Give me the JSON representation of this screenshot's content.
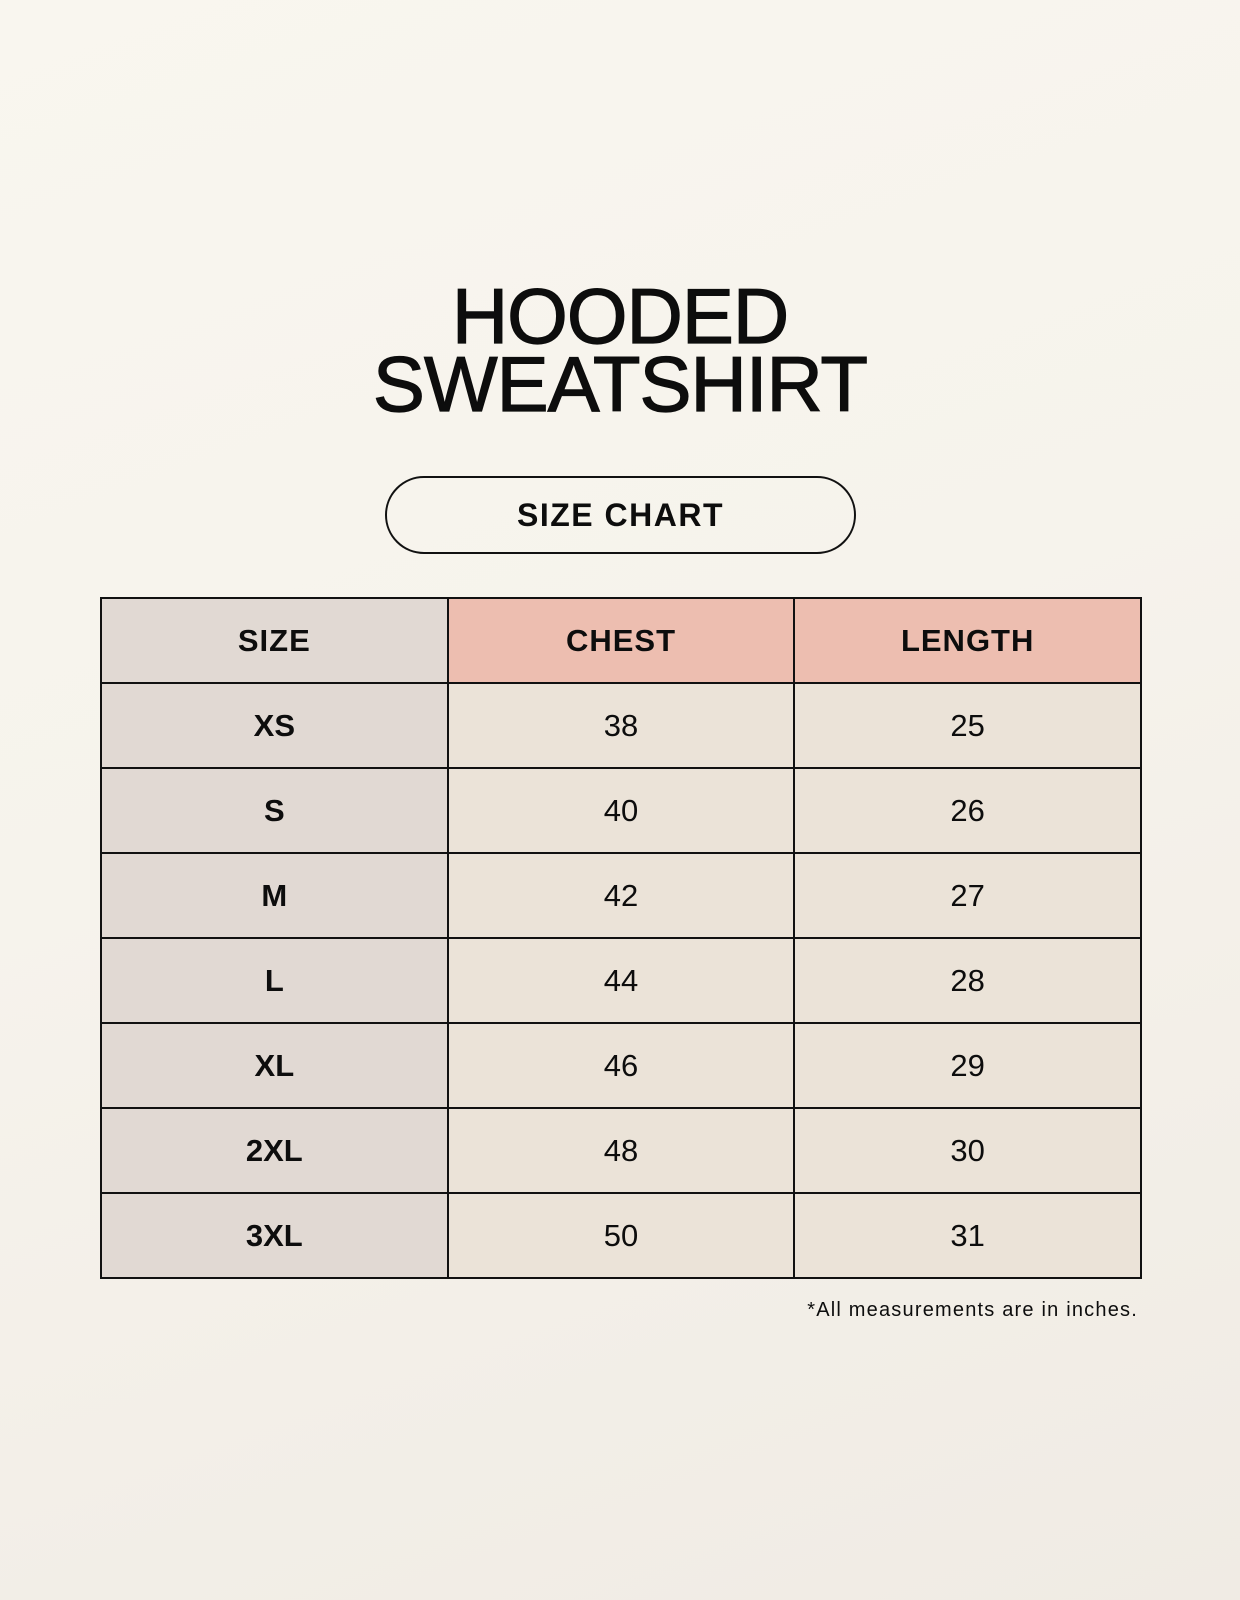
{
  "title": {
    "line1": "HOODED",
    "line2": "SWEATSHIRT"
  },
  "subtitle": "SIZE CHART",
  "table": {
    "headers": [
      "SIZE",
      "CHEST",
      "LENGTH"
    ],
    "rows": [
      [
        "XS",
        "38",
        "25"
      ],
      [
        "S",
        "40",
        "26"
      ],
      [
        "M",
        "42",
        "27"
      ],
      [
        "L",
        "44",
        "28"
      ],
      [
        "XL",
        "46",
        "29"
      ],
      [
        "2XL",
        "48",
        "30"
      ],
      [
        "3XL",
        "50",
        "31"
      ]
    ]
  },
  "footnote": "*All measurements are in inches.",
  "colors": {
    "header_accent": "#edbeb0",
    "size_column": "#e1d9d3",
    "value_cells": "#ebe3d8"
  }
}
